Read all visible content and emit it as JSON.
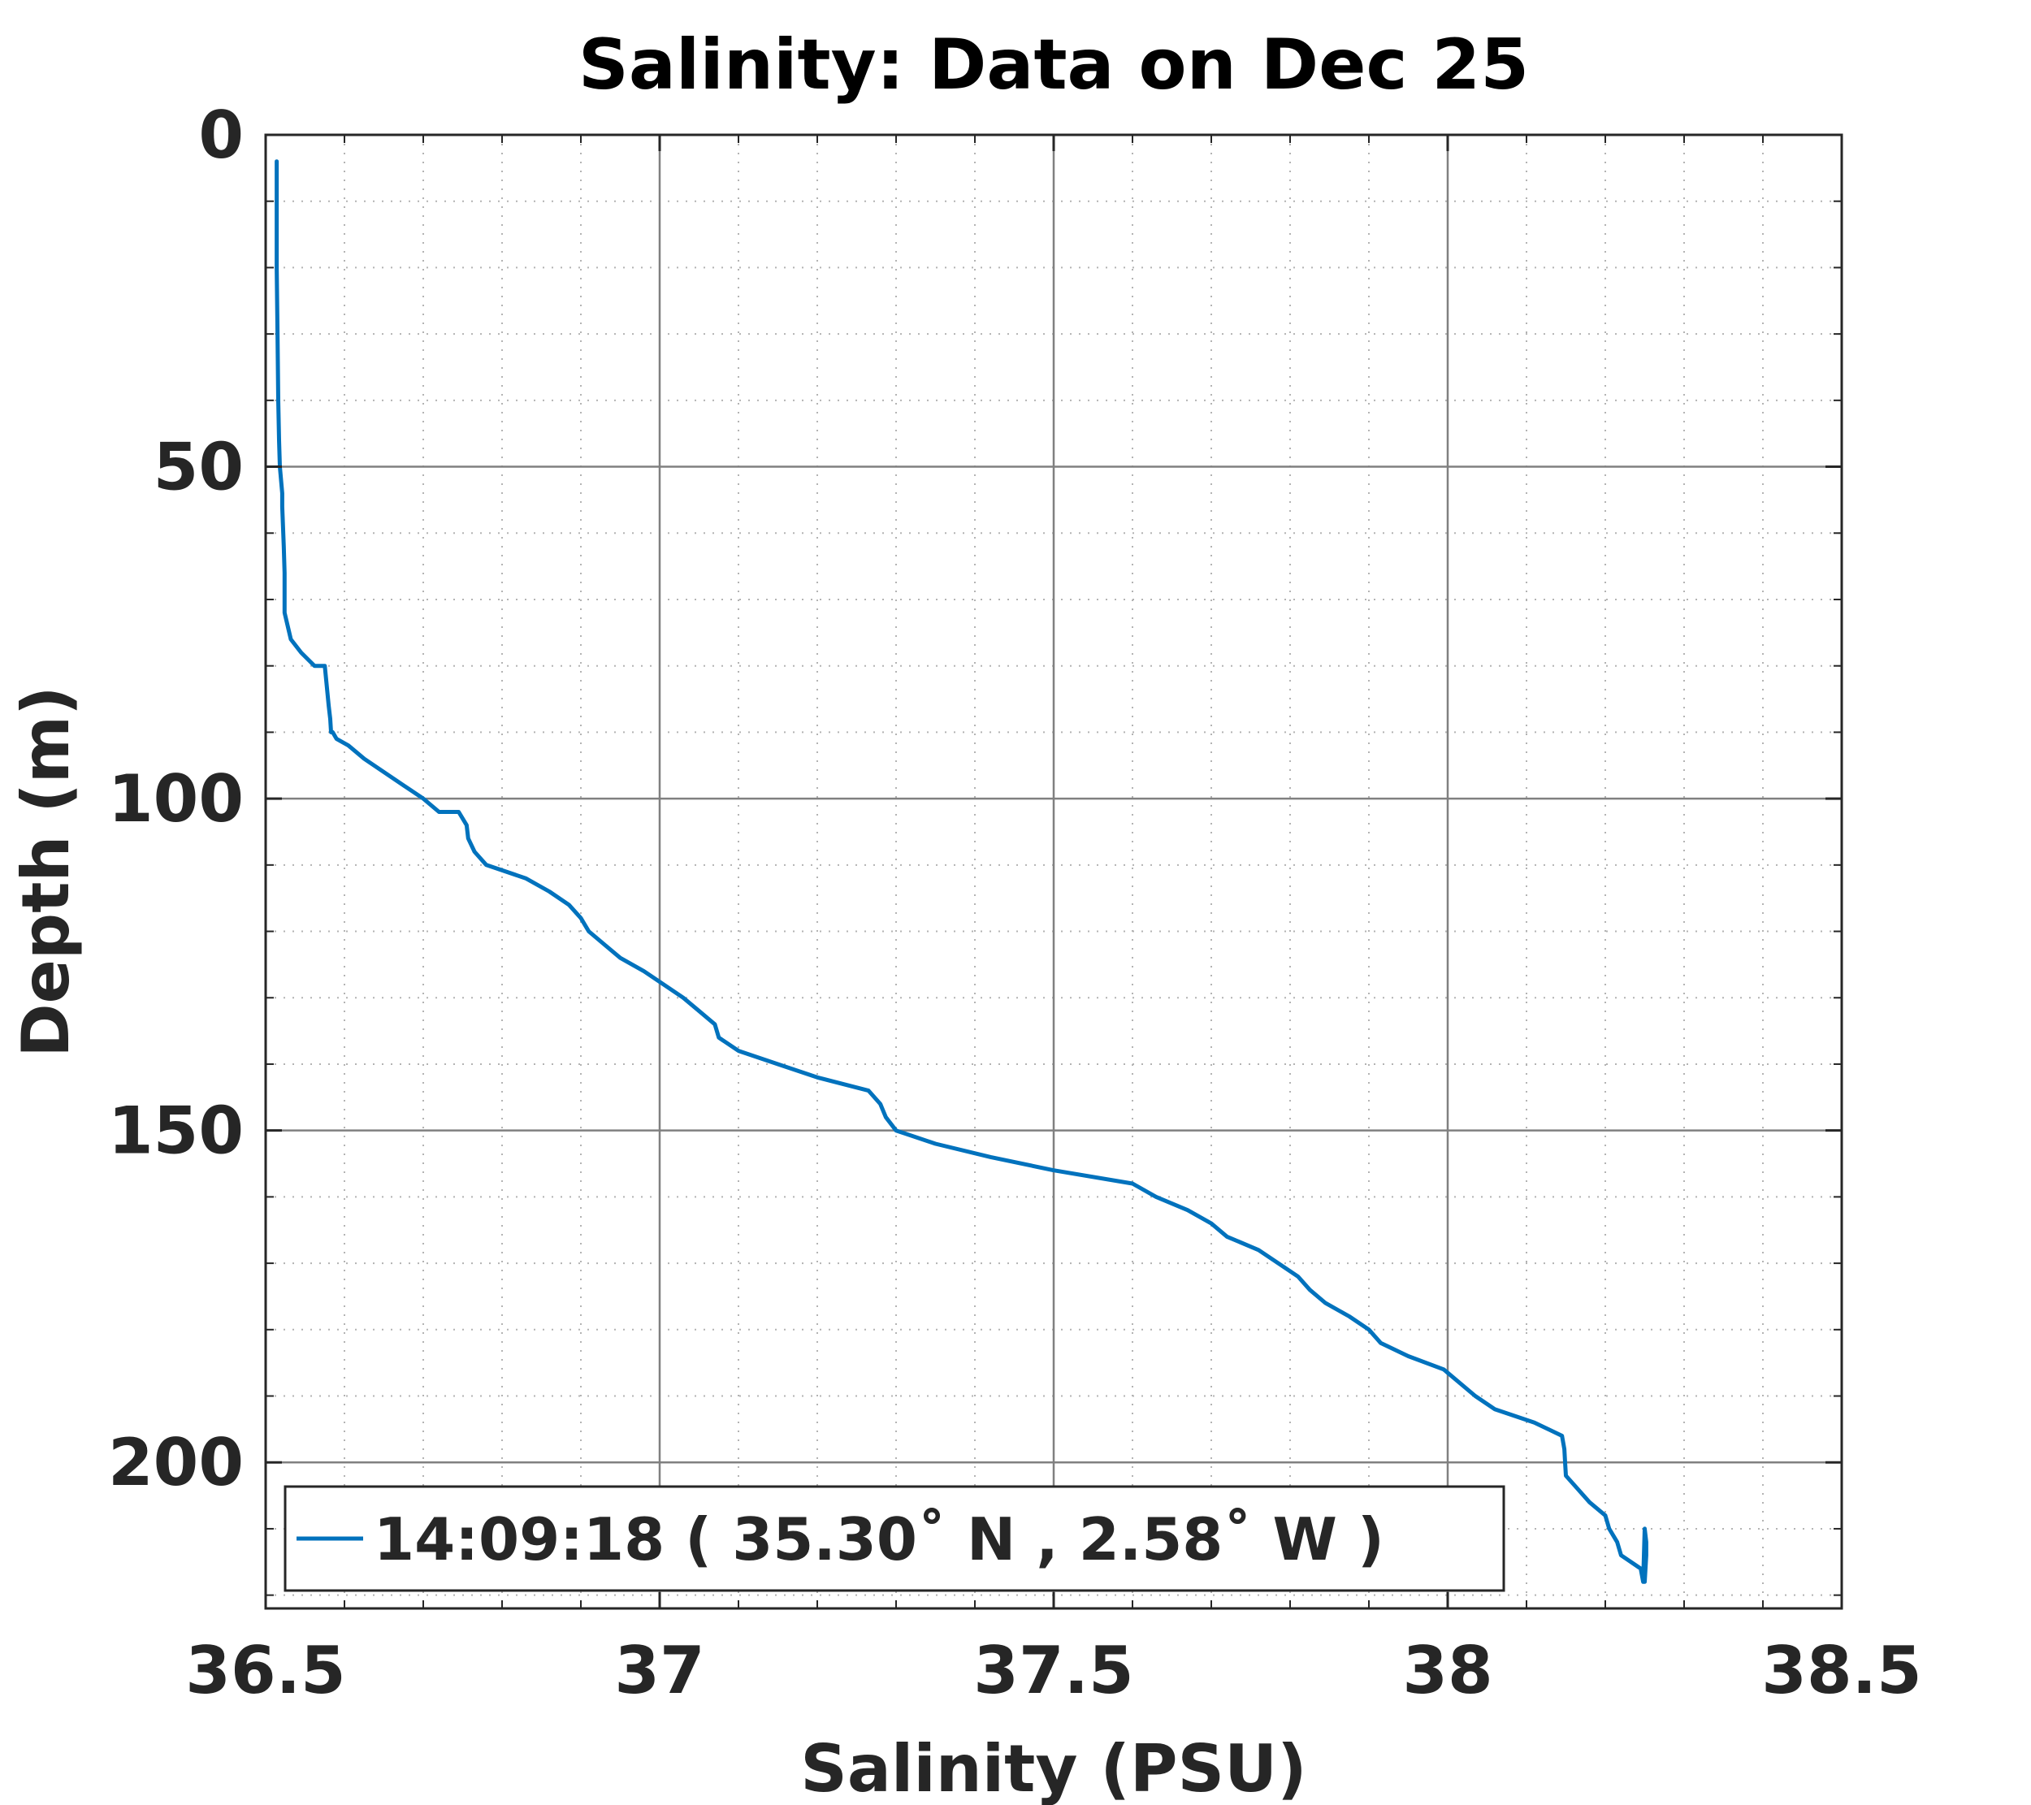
{
  "chart_data": {
    "type": "line",
    "title": "Salinity: Data on Dec 25",
    "xlabel": "Salinity (PSU)",
    "ylabel": "Depth (m)",
    "xlim": [
      36.5,
      38.5
    ],
    "ylim": [
      0,
      222
    ],
    "y_reversed": true,
    "xticks": [
      36.5,
      37,
      37.5,
      38,
      38.5
    ],
    "xtick_labels": [
      "36.5",
      "37",
      "37.5",
      "38",
      "38.5"
    ],
    "yticks": [
      0,
      50,
      100,
      150,
      200
    ],
    "ytick_labels": [
      "0",
      "50",
      "100",
      "150",
      "200"
    ],
    "grid": true,
    "minor_grid": true,
    "legend_position": "bottom-left",
    "series": [
      {
        "name": "14:09:18 ( 35.30˚ N , 2.58˚ W )",
        "color": "#0072BD",
        "x": [
          36.514,
          36.514,
          36.515,
          36.516,
          36.517,
          36.518,
          36.521,
          36.521,
          36.523,
          36.524,
          36.524,
          36.532,
          36.545,
          36.562,
          36.575,
          36.58,
          36.582,
          36.583,
          36.585,
          36.59,
          36.605,
          36.625,
          36.65,
          36.675,
          36.7,
          36.72,
          36.745,
          36.755,
          36.757,
          36.765,
          36.78,
          36.83,
          36.86,
          36.885,
          36.9,
          36.91,
          36.93,
          36.95,
          36.98,
          37.005,
          37.03,
          37.05,
          37.07,
          37.075,
          37.1,
          37.15,
          37.2,
          37.265,
          37.28,
          37.287,
          37.3,
          37.35,
          37.42,
          37.5,
          37.6,
          37.63,
          37.67,
          37.7,
          37.72,
          37.76,
          37.785,
          37.81,
          37.825,
          37.845,
          37.875,
          37.9,
          37.915,
          37.95,
          37.995,
          38.035,
          38.06,
          38.11,
          38.145,
          38.148,
          38.149,
          38.15,
          38.165,
          38.18,
          38.2,
          38.205,
          38.215,
          38.22,
          38.245,
          38.248,
          38.25,
          38.252,
          38.252,
          38.25
        ],
        "y": [
          4,
          20,
          30,
          40,
          46,
          50,
          54,
          56,
          62,
          66,
          72,
          76,
          78,
          80,
          80,
          86,
          88,
          90,
          90,
          91,
          92,
          94,
          96,
          98,
          100,
          102,
          102,
          104,
          106,
          108,
          110,
          112,
          114,
          116,
          118,
          120,
          122,
          124,
          126,
          128,
          130,
          132,
          134,
          136,
          138,
          140,
          142,
          144,
          146,
          148,
          150,
          152,
          154,
          156,
          158,
          160,
          162,
          164,
          166,
          168,
          170,
          172,
          174,
          176,
          178,
          180,
          182,
          184,
          186,
          190,
          192,
          194,
          196,
          198,
          200,
          202,
          204,
          206,
          208,
          210,
          212,
          214,
          216,
          218,
          210,
          212,
          214,
          218
        ]
      }
    ]
  }
}
